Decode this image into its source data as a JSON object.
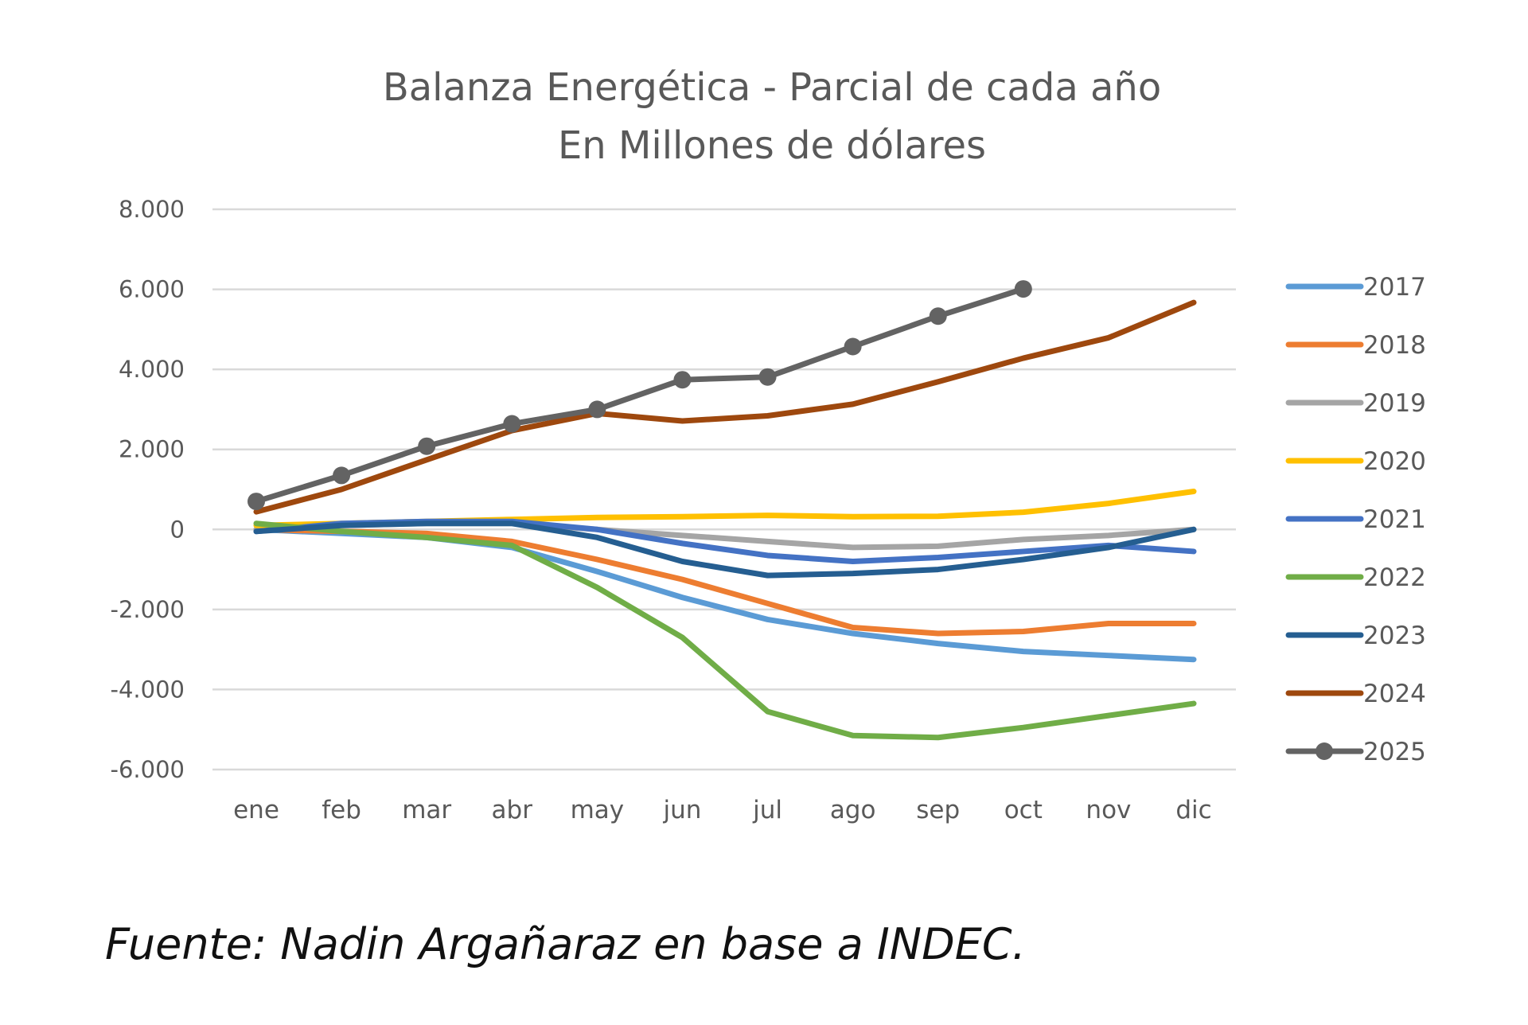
{
  "chart_data": {
    "type": "line",
    "title": "Balanza Energética - Parcial de cada año",
    "subtitle": "En Millones de dólares",
    "xlabel": "",
    "ylabel": "",
    "categories": [
      "ene",
      "feb",
      "mar",
      "abr",
      "may",
      "jun",
      "jul",
      "ago",
      "sep",
      "oct",
      "nov",
      "dic"
    ],
    "ylim": [
      -6000,
      8000
    ],
    "yticks": [
      8000,
      6000,
      4000,
      2000,
      0,
      -2000,
      -4000,
      -6000
    ],
    "ytick_labels": [
      "8.000",
      "6.000",
      "4.000",
      "2.000",
      "0",
      "-2.000",
      "-4.000",
      "-6.000"
    ],
    "grid": true,
    "legend_position": "right",
    "series": [
      {
        "name": "2017",
        "color": "#5B9BD5",
        "values": [
          0,
          -100,
          -200,
          -450,
          -1050,
          -1700,
          -2250,
          -2600,
          -2850,
          -3050,
          -3150,
          -3250
        ]
      },
      {
        "name": "2018",
        "color": "#ED7D31",
        "values": [
          0,
          -50,
          -100,
          -300,
          -750,
          -1250,
          -1850,
          -2450,
          -2600,
          -2550,
          -2350,
          -2350
        ]
      },
      {
        "name": "2019",
        "color": "#A5A5A5",
        "values": [
          0,
          100,
          150,
          150,
          0,
          -150,
          -300,
          -450,
          -420,
          -250,
          -150,
          0
        ]
      },
      {
        "name": "2020",
        "color": "#FFC000",
        "values": [
          100,
          150,
          200,
          250,
          300,
          320,
          350,
          320,
          330,
          430,
          650,
          950
        ]
      },
      {
        "name": "2021",
        "color": "#4472C4",
        "values": [
          -50,
          150,
          200,
          200,
          0,
          -350,
          -650,
          -800,
          -700,
          -550,
          -400,
          -550
        ]
      },
      {
        "name": "2022",
        "color": "#70AD47",
        "values": [
          150,
          -50,
          -200,
          -400,
          -1450,
          -2700,
          -4550,
          -5150,
          -5200,
          -4950,
          -4650,
          -4350
        ]
      },
      {
        "name": "2023",
        "color": "#255E91",
        "values": [
          -50,
          100,
          150,
          150,
          -200,
          -800,
          -1150,
          -1100,
          -1000,
          -750,
          -450,
          0
        ]
      },
      {
        "name": "2024",
        "color": "#9E480E",
        "values": [
          440,
          1000,
          1740,
          2470,
          2900,
          2710,
          2840,
          3130,
          3690,
          4280,
          4790,
          5670
        ]
      },
      {
        "name": "2025",
        "color": "#636363",
        "markers": true,
        "values": [
          700,
          1350,
          2080,
          2640,
          3000,
          3740,
          3810,
          4570,
          5330,
          6010,
          null,
          null
        ]
      }
    ]
  },
  "footer": {
    "source": "Fuente: Nadin Argañaraz en base a INDEC."
  }
}
